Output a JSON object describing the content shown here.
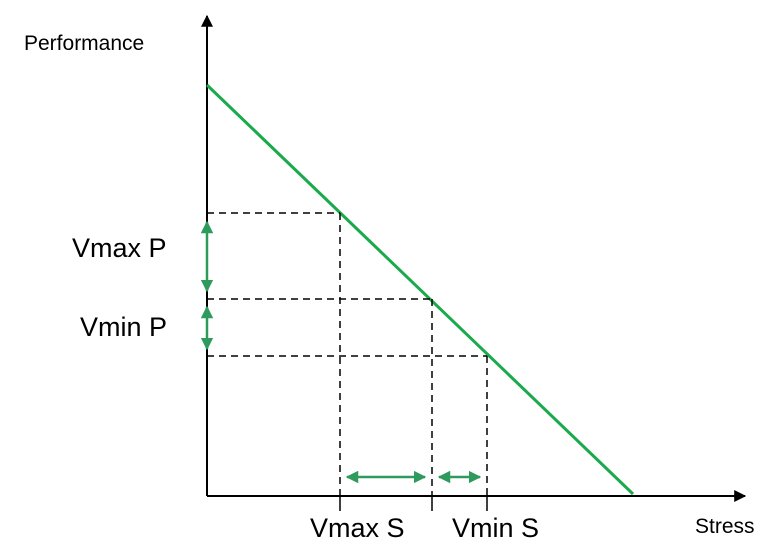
{
  "diagram": {
    "y_axis_label": "Performance",
    "x_axis_label": "Stress",
    "y_marks": [
      "Vmax P",
      "Vmin P"
    ],
    "x_marks": [
      "Vmax S",
      "Vmin S"
    ],
    "colors": {
      "line": "#1aaa4b",
      "arrows": "#2e9a5c",
      "axes": "#000000",
      "guides": "#000000"
    }
  }
}
